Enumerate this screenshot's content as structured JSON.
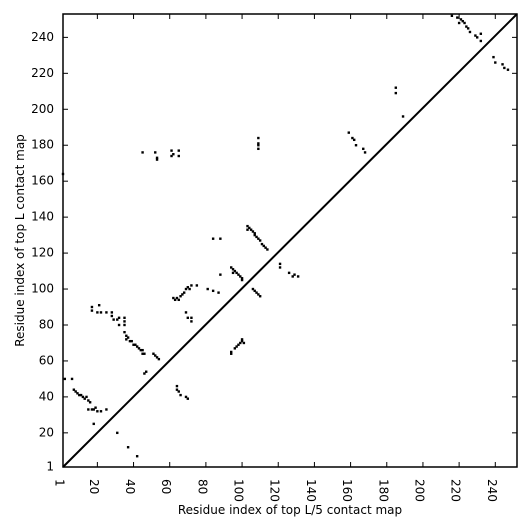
{
  "chart_data": {
    "type": "scatter",
    "xlabel": "Residue index of top L/5 contact map",
    "ylabel": "Residue index of top L contact map",
    "xlim": [
      1,
      252
    ],
    "ylim": [
      1,
      253
    ],
    "xticks": [
      1,
      20,
      40,
      60,
      80,
      100,
      120,
      140,
      160,
      180,
      200,
      220,
      240
    ],
    "xtick_labels": [
      "1",
      "20",
      "40",
      "60",
      "80",
      "100",
      "120",
      "140",
      "160",
      "180",
      "200",
      "220",
      "240"
    ],
    "yticks": [
      1,
      20,
      40,
      60,
      80,
      100,
      120,
      140,
      160,
      180,
      200,
      220,
      240
    ],
    "ytick_labels": [
      "1",
      "20",
      "40",
      "60",
      "80",
      "100",
      "120",
      "140",
      "160",
      "180",
      "200",
      "220",
      "240"
    ],
    "grid": false,
    "diagonal": {
      "from": [
        1,
        1
      ],
      "to": [
        252,
        253
      ],
      "color": "#000000"
    },
    "marker_color": "#000000",
    "series": [
      {
        "points": [
          [
            1,
            164
          ],
          [
            2,
            50
          ],
          [
            6,
            50
          ],
          [
            7,
            44
          ],
          [
            8,
            43
          ],
          [
            9,
            42
          ],
          [
            10,
            41
          ],
          [
            11,
            41
          ],
          [
            12,
            40
          ],
          [
            13,
            39
          ],
          [
            14,
            40
          ],
          [
            15,
            38
          ],
          [
            16,
            37
          ],
          [
            15,
            33
          ],
          [
            17,
            33
          ],
          [
            18,
            33
          ],
          [
            18,
            25
          ],
          [
            19,
            34
          ],
          [
            20,
            32
          ],
          [
            22,
            32
          ],
          [
            25,
            33
          ],
          [
            17,
            90
          ],
          [
            17,
            88
          ],
          [
            20,
            87
          ],
          [
            21,
            91
          ],
          [
            22,
            87
          ],
          [
            25,
            87
          ],
          [
            28,
            85
          ],
          [
            28,
            87
          ],
          [
            29,
            83
          ],
          [
            31,
            83
          ],
          [
            32,
            84
          ],
          [
            32,
            80
          ],
          [
            35,
            84
          ],
          [
            35,
            82
          ],
          [
            35,
            80
          ],
          [
            35,
            76
          ],
          [
            36,
            74
          ],
          [
            36,
            72
          ],
          [
            37,
            73
          ],
          [
            38,
            71
          ],
          [
            39,
            71
          ],
          [
            40,
            69
          ],
          [
            41,
            69
          ],
          [
            42,
            68
          ],
          [
            43,
            67
          ],
          [
            44,
            66
          ],
          [
            45,
            66
          ],
          [
            45,
            64
          ],
          [
            46,
            64
          ],
          [
            46,
            53
          ],
          [
            47,
            54
          ],
          [
            45,
            176
          ],
          [
            52,
            176
          ],
          [
            53,
            173
          ],
          [
            53,
            172
          ],
          [
            61,
            177
          ],
          [
            61,
            174
          ],
          [
            62,
            175
          ],
          [
            65,
            177
          ],
          [
            65,
            174
          ],
          [
            51,
            64
          ],
          [
            52,
            63
          ],
          [
            53,
            62
          ],
          [
            54,
            61
          ],
          [
            31,
            20
          ],
          [
            37,
            12
          ],
          [
            42,
            7
          ],
          [
            62,
            95
          ],
          [
            63,
            94
          ],
          [
            64,
            95
          ],
          [
            65,
            94
          ],
          [
            66,
            96
          ],
          [
            67,
            97
          ],
          [
            68,
            98
          ],
          [
            69,
            100
          ],
          [
            70,
            101
          ],
          [
            71,
            100
          ],
          [
            72,
            102
          ],
          [
            75,
            102
          ],
          [
            69,
            87
          ],
          [
            70,
            84
          ],
          [
            72,
            84
          ],
          [
            72,
            82
          ],
          [
            64,
            46
          ],
          [
            64,
            44
          ],
          [
            65,
            43
          ],
          [
            66,
            41
          ],
          [
            69,
            40
          ],
          [
            70,
            39
          ],
          [
            81,
            100
          ],
          [
            84,
            99
          ],
          [
            84,
            128
          ],
          [
            87,
            98
          ],
          [
            88,
            128
          ],
          [
            88,
            108
          ],
          [
            94,
            112
          ],
          [
            95,
            111
          ],
          [
            95,
            109
          ],
          [
            96,
            110
          ],
          [
            97,
            109
          ],
          [
            98,
            108
          ],
          [
            99,
            107
          ],
          [
            100,
            106
          ],
          [
            100,
            105
          ],
          [
            94,
            65
          ],
          [
            94,
            64
          ],
          [
            96,
            67
          ],
          [
            97,
            68
          ],
          [
            98,
            69
          ],
          [
            99,
            70
          ],
          [
            100,
            71
          ],
          [
            101,
            70
          ],
          [
            100,
            72
          ],
          [
            103,
            135
          ],
          [
            103,
            133
          ],
          [
            104,
            134
          ],
          [
            105,
            133
          ],
          [
            106,
            132
          ],
          [
            107,
            131
          ],
          [
            107,
            130
          ],
          [
            108,
            129
          ],
          [
            109,
            128
          ],
          [
            110,
            127
          ],
          [
            111,
            125
          ],
          [
            112,
            124
          ],
          [
            113,
            123
          ],
          [
            114,
            122
          ],
          [
            106,
            100
          ],
          [
            107,
            99
          ],
          [
            108,
            98
          ],
          [
            109,
            97
          ],
          [
            110,
            96
          ],
          [
            109,
            184
          ],
          [
            109,
            181
          ],
          [
            109,
            180
          ],
          [
            109,
            178
          ],
          [
            121,
            114
          ],
          [
            121,
            112
          ],
          [
            126,
            109
          ],
          [
            128,
            107
          ],
          [
            129,
            108
          ],
          [
            131,
            107
          ],
          [
            159,
            187
          ],
          [
            161,
            184
          ],
          [
            162,
            183
          ],
          [
            163,
            180
          ],
          [
            167,
            178
          ],
          [
            168,
            176
          ],
          [
            185,
            212
          ],
          [
            185,
            209
          ],
          [
            189,
            196
          ],
          [
            216,
            252
          ],
          [
            219,
            251
          ],
          [
            220,
            248
          ],
          [
            221,
            250
          ],
          [
            222,
            249
          ],
          [
            223,
            248
          ],
          [
            224,
            246
          ],
          [
            225,
            245
          ],
          [
            226,
            243
          ],
          [
            229,
            241
          ],
          [
            230,
            240
          ],
          [
            232,
            242
          ],
          [
            232,
            238
          ],
          [
            239,
            229
          ],
          [
            240,
            226
          ],
          [
            244,
            225
          ],
          [
            245,
            223
          ],
          [
            247,
            222
          ]
        ]
      }
    ]
  }
}
